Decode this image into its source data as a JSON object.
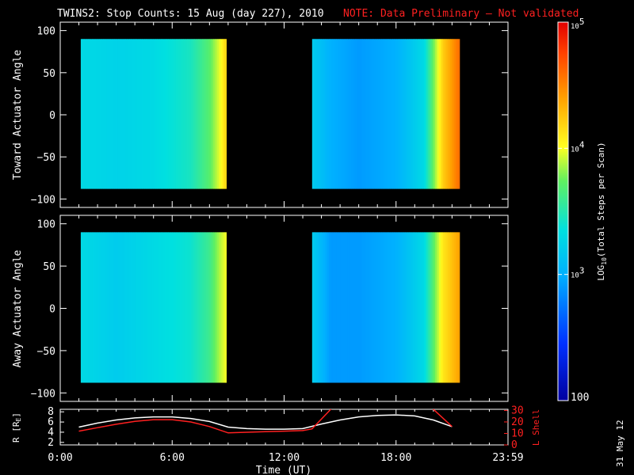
{
  "title": {
    "main": "TWINS2: Stop Counts: 15 Aug (day 227), 2010",
    "note": "NOTE: Data Preliminary – Not validated"
  },
  "panels": {
    "toward": {
      "ylabel": "Toward Actuator Angle"
    },
    "away": {
      "ylabel": "Away Actuator Angle"
    },
    "orbit": {
      "ylabel_left": "R [R",
      "ylabel_left_sub": "E",
      "ylabel_left_end": "]",
      "ylabel_right": "L Shell"
    }
  },
  "colorbar": {
    "label_pre": "LOG",
    "label_sub": "10",
    "label_post": "(Total Steps per Scan)",
    "ticks": [
      {
        "value": "100",
        "base": "",
        "exp": ""
      },
      {
        "value": "",
        "base": "10",
        "exp": "3"
      },
      {
        "value": "",
        "base": "10",
        "exp": "4"
      },
      {
        "value": "",
        "base": "10",
        "exp": "5"
      }
    ],
    "min": 100,
    "max": 100000
  },
  "xaxis": {
    "label": "Time (UT)",
    "ticks": [
      "0:00",
      "6:00",
      "12:00",
      "18:00",
      "23:59"
    ]
  },
  "stamp": "31 May 12",
  "chart_data": [
    {
      "type": "heatmap",
      "name": "Toward",
      "x_range_hours": [
        0,
        24
      ],
      "ylim": [
        -110,
        110
      ],
      "yticks": [
        -100,
        -50,
        0,
        50,
        100
      ],
      "coverage_hours": [
        [
          1.1,
          8.9
        ],
        [
          13.5,
          21.4
        ]
      ],
      "angle_range": [
        -88,
        90
      ],
      "description_columns_log10": [
        [
          1.1,
          3.3
        ],
        [
          3.0,
          3.25
        ],
        [
          5.0,
          3.3
        ],
        [
          7.0,
          3.45
        ],
        [
          8.0,
          3.7
        ],
        [
          8.6,
          4.0
        ],
        [
          8.9,
          4.2
        ],
        [
          13.5,
          3.2
        ],
        [
          14.5,
          3.0
        ],
        [
          16.0,
          2.9
        ],
        [
          18.0,
          3.0
        ],
        [
          19.5,
          3.3
        ],
        [
          20.5,
          4.2
        ],
        [
          21.4,
          4.6
        ]
      ]
    },
    {
      "type": "heatmap",
      "name": "Away",
      "x_range_hours": [
        0,
        24
      ],
      "ylim": [
        -110,
        110
      ],
      "yticks": [
        -100,
        -50,
        0,
        50,
        100
      ],
      "coverage_hours": [
        [
          1.1,
          8.9
        ],
        [
          13.5,
          21.4
        ]
      ],
      "angle_range": [
        -88,
        90
      ],
      "description_columns_log10": [
        [
          1.1,
          3.3
        ],
        [
          3.0,
          3.2
        ],
        [
          5.0,
          3.3
        ],
        [
          7.0,
          3.4
        ],
        [
          8.0,
          3.6
        ],
        [
          8.6,
          3.9
        ],
        [
          8.9,
          4.0
        ],
        [
          13.5,
          3.2
        ],
        [
          14.5,
          2.9
        ],
        [
          16.0,
          2.9
        ],
        [
          18.0,
          3.0
        ],
        [
          19.5,
          3.3
        ],
        [
          20.5,
          4.1
        ],
        [
          21.4,
          4.4
        ]
      ]
    },
    {
      "type": "line",
      "name": "Orbit",
      "xlim": [
        0,
        24
      ],
      "ylim_left": [
        1.5,
        8.5
      ],
      "yticks_left": [
        2,
        4,
        6,
        8
      ],
      "ylim_right": [
        0,
        31
      ],
      "yticks_right": [
        0,
        10,
        20,
        30
      ],
      "series": [
        {
          "name": "R",
          "color": "#ffffff",
          "x": [
            1,
            2,
            3,
            4,
            5,
            6,
            7,
            8,
            9,
            10,
            11,
            12,
            13,
            14,
            15,
            16,
            17,
            18,
            19,
            20,
            21
          ],
          "y": [
            5.0,
            5.8,
            6.4,
            6.8,
            7.0,
            7.0,
            6.7,
            6.1,
            5.0,
            4.7,
            4.6,
            4.6,
            4.7,
            5.6,
            6.4,
            7.0,
            7.3,
            7.4,
            7.2,
            6.4,
            5.1
          ]
        },
        {
          "name": "L Shell",
          "color": "#ff2020",
          "x": [
            1,
            2,
            3,
            4,
            5,
            6,
            7,
            8,
            9,
            10,
            11,
            12,
            13,
            13.5,
            14.5,
            15,
            19.5,
            20,
            21
          ],
          "y": [
            12,
            15,
            18,
            20.5,
            22,
            22,
            20,
            16,
            10.5,
            11,
            11.5,
            12,
            12.5,
            14,
            31,
            40,
            40,
            31,
            16
          ]
        }
      ]
    }
  ]
}
